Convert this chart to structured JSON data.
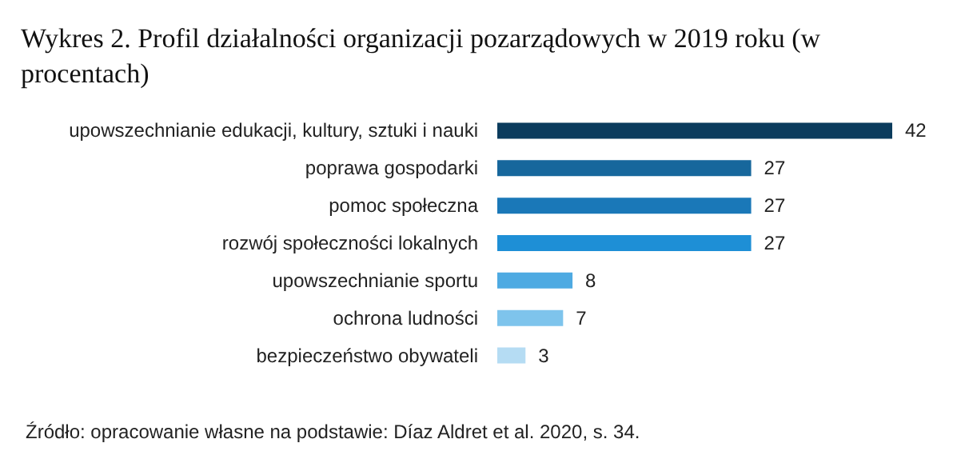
{
  "chart_data": {
    "type": "bar",
    "orientation": "horizontal",
    "title": "Wykres 2. Profil działalności organizacji pozarządowych w 2019 roku (w  procentach)",
    "categories": [
      "upowszechnianie edukacji, kultury, sztuki i nauki",
      "poprawa gospodarki",
      "pomoc społeczna",
      "rozwój społeczności lokalnych",
      "upowszechnianie sportu",
      "ochrona ludności",
      "bezpieczeństwo obywateli"
    ],
    "values": [
      42,
      27,
      27,
      27,
      8,
      7,
      3
    ],
    "colors": [
      "#0b3c5d",
      "#17679c",
      "#1a78b8",
      "#1e8fd6",
      "#4eaae2",
      "#7ec4ec",
      "#b5dcf3"
    ],
    "data_labels": true,
    "annotations": [
      "Źródło: opracowanie własne na podstawie: Díaz Aldret et al. 2020, s. 34."
    ]
  }
}
